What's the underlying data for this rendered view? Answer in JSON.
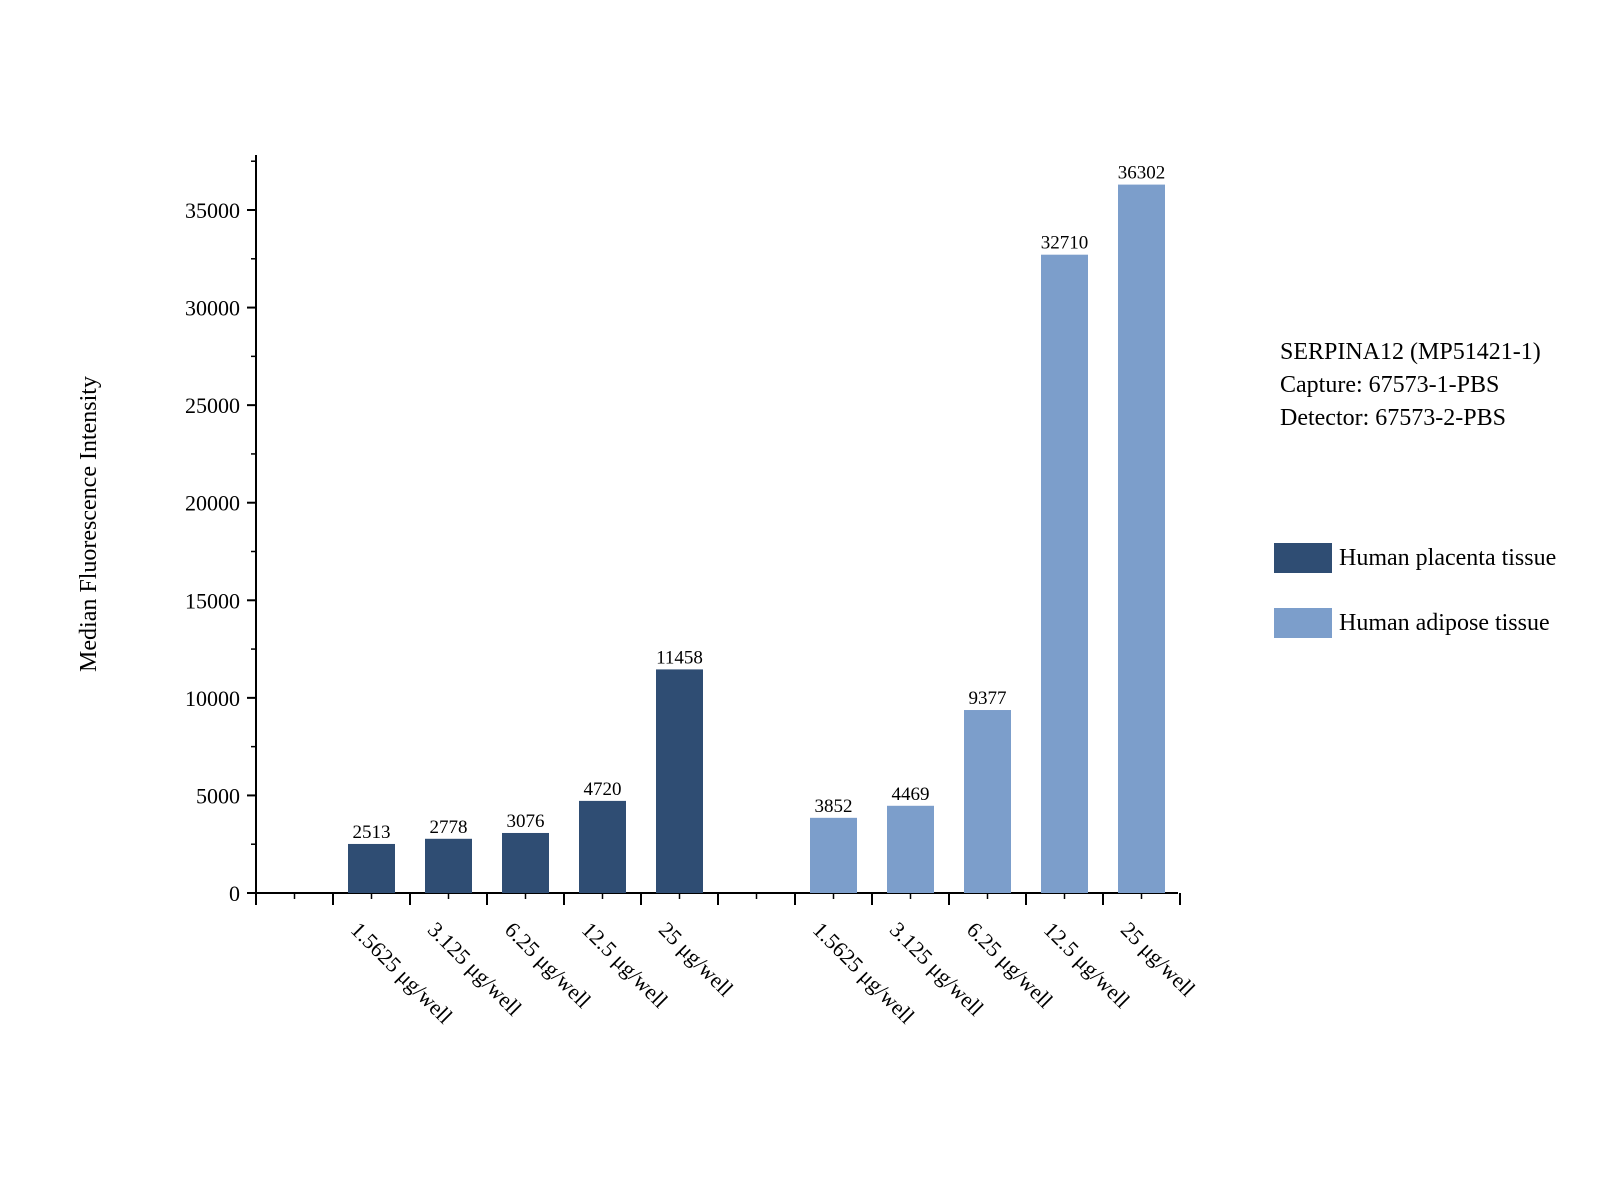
{
  "chart_data": {
    "type": "bar",
    "ylabel": "Median Fluorescence Intensity",
    "xlabel": "",
    "ylim": [
      0,
      38000
    ],
    "yticks": [
      0,
      5000,
      10000,
      15000,
      20000,
      25000,
      30000,
      35000
    ],
    "grid": false,
    "legend_position": "right",
    "groups": [
      {
        "name": "Human placenta tissue",
        "color": "#2f4d73",
        "categories": [
          "1.5625 μg/well",
          "3.125 μg/well",
          "6.25 μg/well",
          "12.5 μg/well",
          "25 μg/well"
        ],
        "values": [
          2513,
          2778,
          3076,
          4720,
          11458
        ],
        "labels": [
          "2513",
          "2778",
          "3076",
          "4720",
          "11458"
        ]
      },
      {
        "name": "Human adipose tissue",
        "color": "#7c9ecb",
        "categories": [
          "1.5625 μg/well",
          "3.125 μg/well",
          "6.25 μg/well",
          "12.5 μg/well",
          "25 μg/well"
        ],
        "values": [
          3852,
          4469,
          9377,
          32710,
          36302
        ],
        "labels": [
          "3852",
          "4469",
          "9377",
          "32710",
          "36302"
        ]
      }
    ]
  },
  "info_text": {
    "line1": "SERPINA12 (MP51421-1)",
    "line2": "Capture: 67573-1-PBS",
    "line3": "Detector: 67573-2-PBS"
  },
  "legend": [
    {
      "label": "Human placenta tissue",
      "color": "#2f4d73"
    },
    {
      "label": "Human adipose tissue",
      "color": "#7c9ecb"
    }
  ]
}
